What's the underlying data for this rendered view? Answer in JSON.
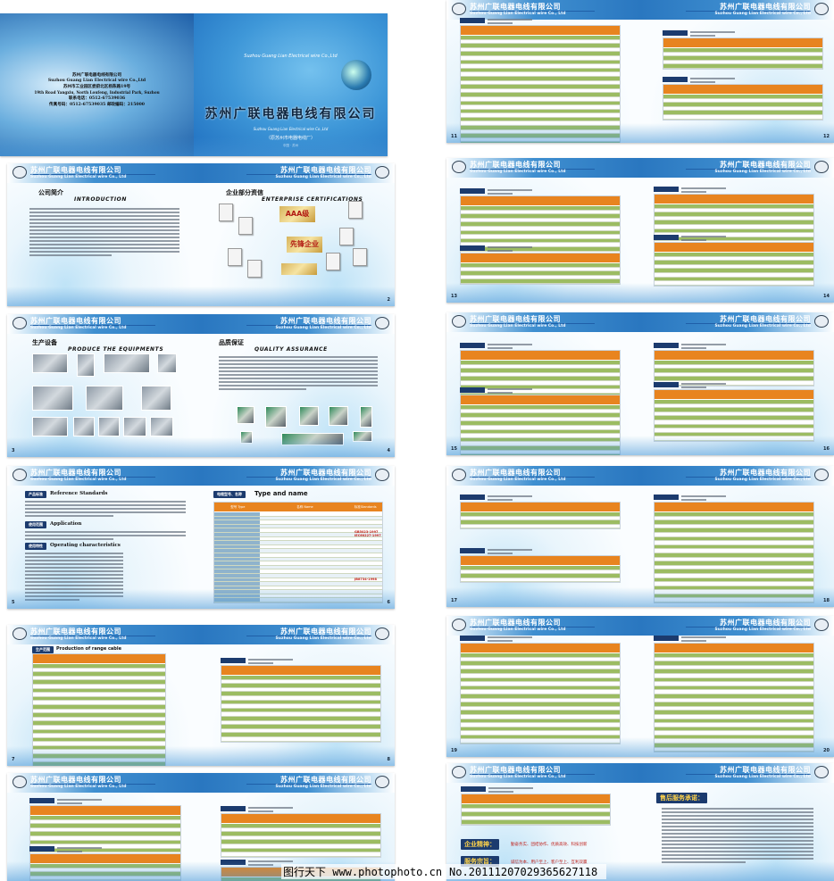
{
  "company": {
    "name_cn": "苏州广联电器电线有限公司",
    "name_en": "Suzhou Guang Lian Electrical wire Co., Ltd"
  },
  "cover": {
    "back_lines": [
      "苏州广联电器电线有限公司",
      "Suzhou Guang Lian Electrical wire Co.,Ltd",
      "苏州市工业园区娄葑北区杨陈路19号",
      "19th Road Yangxiu, North Loufeng, Industrial Park, Suzhou",
      "联系电话：0512-67539036",
      "传真号码：0512-67539035   邮政编码：215000"
    ],
    "front_en": "Suzhou Guang Lian Electrical wire Co.,Ltd",
    "front_title": "苏州广联电器电线有限公司",
    "front_sub": "（原苏州市电器电线厂）",
    "front_place": "中国 · 苏州"
  },
  "sections": {
    "intro": {
      "cn": "公司简介",
      "en": "INTRODUCTION"
    },
    "certs": {
      "cn": "企业部分资信",
      "en": "ENTERPRISE CERTIFICATIONS",
      "badges": [
        "AAA级",
        "先锋企业"
      ]
    },
    "equip": {
      "cn": "生产设备",
      "en": "PRODUCE THE EQUIPMENTS"
    },
    "quality": {
      "cn": "品质保证",
      "en": "QUALITY ASSURANCE"
    },
    "standards": {
      "ref_tag": "产品标准",
      "ref_en": "Reference Standards",
      "app_tag": "使用范围",
      "app_en": "Application",
      "op_tag": "使用特性",
      "op_en": "Operating characteristics"
    },
    "types": {
      "tag": "电缆型号、名称",
      "en": "Type and name",
      "col_type": "型号 Type",
      "col_name": "名称 Name",
      "col_std": "标准Standards",
      "std1": "GB5023-1997 IEC60227-1997",
      "std2": "JB8734-1998"
    },
    "range": {
      "tag": "生产范围",
      "en": "Production of range cable"
    },
    "spirit": {
      "tag": "企业精神：",
      "text": "勤奋务实、团结协作、优质高效、科技创新"
    },
    "tenet": {
      "tag": "服务宗旨：",
      "text": "诚信为本、用户至上、客户至上、互利双赢"
    },
    "service": {
      "tag": "售后服务承诺："
    }
  },
  "page_numbers": [
    "",
    "2",
    "3",
    "4",
    "5",
    "6",
    "7",
    "8",
    "",
    "",
    "11",
    "12",
    "13",
    "14",
    "15",
    "16",
    "17",
    "18",
    "19",
    "20"
  ],
  "watermark": {
    "site": "图行天下 www.photophoto.cn",
    "id": "No.20111207029365627118"
  }
}
